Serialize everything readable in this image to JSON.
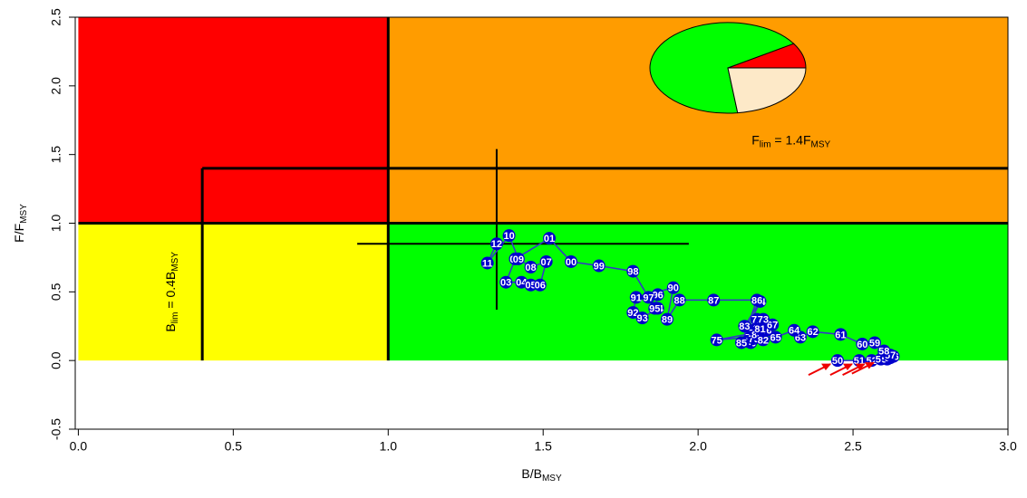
{
  "chart_data": {
    "type": "line",
    "x_label": [
      "B/B",
      "MSY"
    ],
    "y_label": [
      "F/F",
      "MSY"
    ],
    "xlim": [
      -0.01,
      3.0
    ],
    "ylim": [
      -0.5,
      2.5
    ],
    "xticks": [
      {
        "value": 0,
        "label": "0.0"
      },
      0.5,
      {
        "value": 1,
        "label": "1.0"
      },
      1.5,
      {
        "value": 2,
        "label": "2.0"
      },
      2.5,
      {
        "value": 3,
        "label": "3.0"
      }
    ],
    "yticks": [
      -0.5,
      {
        "value": 0,
        "label": "0.0"
      },
      0.5,
      {
        "value": 1,
        "label": "1.0"
      },
      1.5,
      {
        "value": 2,
        "label": "2.0"
      },
      2.5
    ],
    "zones": [
      {
        "x": [
          0,
          1
        ],
        "y": [
          1,
          2.5
        ],
        "color": "#ff0000"
      },
      {
        "x": [
          1,
          3
        ],
        "y": [
          1,
          2.5
        ],
        "color": "#ff9c00"
      },
      {
        "x": [
          0,
          1
        ],
        "y": [
          0,
          1
        ],
        "color": "#ffff00"
      },
      {
        "x": [
          1,
          3
        ],
        "y": [
          0,
          1
        ],
        "color": "#00ff00"
      }
    ],
    "reference_lines": [
      {
        "x": [
          1,
          1
        ],
        "y": [
          0,
          2.5
        ]
      },
      {
        "x": [
          0,
          3
        ],
        "y": [
          1,
          1
        ]
      },
      {
        "x": [
          0.4,
          0.4
        ],
        "y": [
          0,
          1.4
        ]
      },
      {
        "x": [
          0.4,
          3
        ],
        "y": [
          1.4,
          1.4
        ]
      }
    ],
    "annotations": [
      {
        "parts": [
          "F",
          "lim",
          " = 1.4F",
          "MSY"
        ],
        "x": 2.3,
        "y": 1.6
      },
      {
        "parts": [
          "B",
          "lim",
          " = 0.4B",
          "MSY"
        ],
        "x": 0.3,
        "y": 0.5
      }
    ],
    "cross": {
      "x": [
        0.9,
        1.97
      ],
      "y": [
        0.37,
        1.54
      ]
    },
    "line_color": "#3333cc",
    "point_color": "#0000cc",
    "x": [
      2.45,
      2.52,
      2.56,
      2.59,
      2.61,
      2.62,
      2.63,
      2.62,
      2.6,
      2.57,
      2.53,
      2.46,
      2.37,
      2.33,
      2.31,
      2.25,
      2.22,
      2.24,
      2.2,
      2.18,
      2.17,
      2.19,
      2.19,
      2.21,
      2.18,
      2.06,
      2.17,
      2.16,
      2.2,
      2.18,
      2.19,
      2.2,
      2.21,
      2.15,
      2.2,
      2.14,
      2.19,
      2.05,
      1.94,
      1.9,
      1.92,
      1.8,
      1.79,
      1.82,
      1.87,
      1.86,
      1.87,
      1.84,
      1.79,
      1.68,
      1.59,
      1.52,
      1.41,
      1.38,
      1.43,
      1.46,
      1.49,
      1.51,
      1.46,
      1.42,
      1.39,
      1.32,
      1.35
    ],
    "values": [
      0,
      0,
      0,
      0.01,
      0.01,
      0.02,
      0.03,
      0.04,
      0.07,
      0.13,
      0.12,
      0.19,
      0.21,
      0.17,
      0.22,
      0.17,
      0.22,
      0.26,
      0.2,
      0.17,
      0.13,
      0.25,
      0.3,
      0.3,
      0.2,
      0.15,
      0.17,
      0.14,
      0.18,
      0.16,
      0.19,
      0.23,
      0.15,
      0.25,
      0.43,
      0.13,
      0.44,
      0.44,
      0.44,
      0.3,
      0.53,
      0.46,
      0.35,
      0.31,
      0.38,
      0.38,
      0.48,
      0.46,
      0.65,
      0.69,
      0.72,
      0.89,
      0.74,
      0.57,
      0.57,
      0.55,
      0.55,
      0.72,
      0.68,
      0.74,
      0.91,
      0.71,
      0.85
    ],
    "point_labels": [
      "50",
      "51",
      "52",
      "53",
      "54",
      "55",
      "56",
      "57",
      "58",
      "59",
      "60",
      "61",
      "62",
      "63",
      "64",
      "65",
      "66",
      "67",
      "68",
      "69",
      "70",
      "71",
      "72",
      "73",
      "74",
      "75",
      "76",
      "77",
      "78",
      "79",
      "80",
      "81",
      "82",
      "83",
      "84",
      "85",
      "86",
      "87",
      "88",
      "89",
      "90",
      "91",
      "92",
      "93",
      "94",
      "95",
      "96",
      "97",
      "98",
      "99",
      "00",
      "01",
      "02",
      "03",
      "04",
      "05",
      "06",
      "07",
      "08",
      "09",
      "10",
      "11",
      "12"
    ],
    "pie": {
      "values": [
        9,
        68,
        23
      ],
      "colors": [
        "#ff0000",
        "#00ff00",
        "#fde9c8"
      ]
    }
  }
}
